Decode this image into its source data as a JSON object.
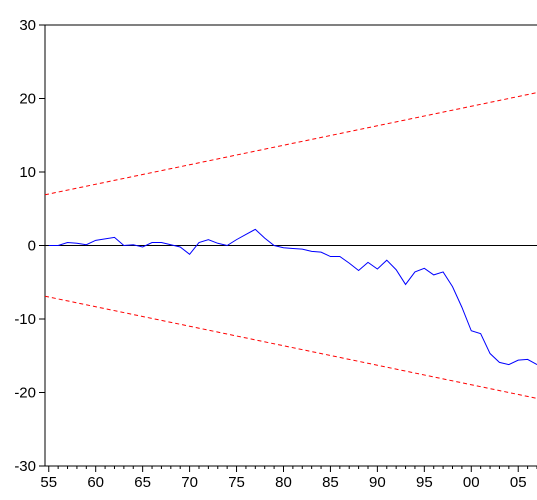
{
  "chart_data": {
    "type": "line",
    "title": "",
    "xlabel": "",
    "ylabel": "",
    "xlim": [
      1954.6,
      2007.0
    ],
    "ylim": [
      -30,
      30
    ],
    "x_ticks": [
      1955,
      1960,
      1965,
      1970,
      1975,
      1980,
      1985,
      1990,
      1995,
      2000,
      2005
    ],
    "x_tick_labels": [
      "55",
      "60",
      "65",
      "70",
      "75",
      "80",
      "85",
      "90",
      "95",
      "00",
      "05"
    ],
    "y_ticks": [
      30,
      20,
      10,
      0,
      -10,
      -20,
      -30
    ],
    "y_tick_labels": [
      "30",
      "20",
      "10",
      "0",
      "-10",
      "-20",
      "-30"
    ],
    "zero_line": true,
    "grid": false,
    "series": [
      {
        "color": "#0000ff",
        "style": "solid",
        "x": [
          1955,
          1956,
          1957,
          1958,
          1959,
          1960,
          1961,
          1962,
          1963,
          1964,
          1965,
          1966,
          1967,
          1968,
          1969,
          1970,
          1971,
          1972,
          1973,
          1974,
          1975,
          1976,
          1977,
          1978,
          1979,
          1980,
          1981,
          1982,
          1983,
          1984,
          1985,
          1986,
          1987,
          1988,
          1989,
          1990,
          1991,
          1992,
          1993,
          1994,
          1995,
          1996,
          1997,
          1998,
          1999,
          2000,
          2001,
          2002,
          2003,
          2004,
          2005,
          2006,
          2007
        ],
        "y": [
          0.0,
          0.0,
          0.4,
          0.3,
          0.1,
          0.7,
          0.9,
          1.1,
          0.0,
          0.1,
          -0.2,
          0.4,
          0.4,
          0.1,
          -0.2,
          -1.2,
          0.4,
          0.8,
          0.3,
          0.0,
          0.8,
          1.5,
          2.2,
          1.0,
          0.0,
          -0.3,
          -0.4,
          -0.5,
          -0.8,
          -0.9,
          -1.5,
          -1.5,
          -2.4,
          -3.4,
          -2.3,
          -3.2,
          -2.0,
          -3.3,
          -5.3,
          -3.6,
          -3.1,
          -4.0,
          -3.6,
          -5.6,
          -8.4,
          -11.6,
          -12.0,
          -14.7,
          -15.9,
          -16.2,
          -15.6,
          -15.5,
          -16.2
        ]
      },
      {
        "color": "#ff0000",
        "style": "dashed",
        "x": [
          1954.6,
          2007.0
        ],
        "y": [
          6.9,
          20.8
        ]
      },
      {
        "color": "#ff0000",
        "style": "dashed",
        "x": [
          1954.6,
          2007.0
        ],
        "y": [
          -6.9,
          -20.8
        ]
      }
    ]
  }
}
